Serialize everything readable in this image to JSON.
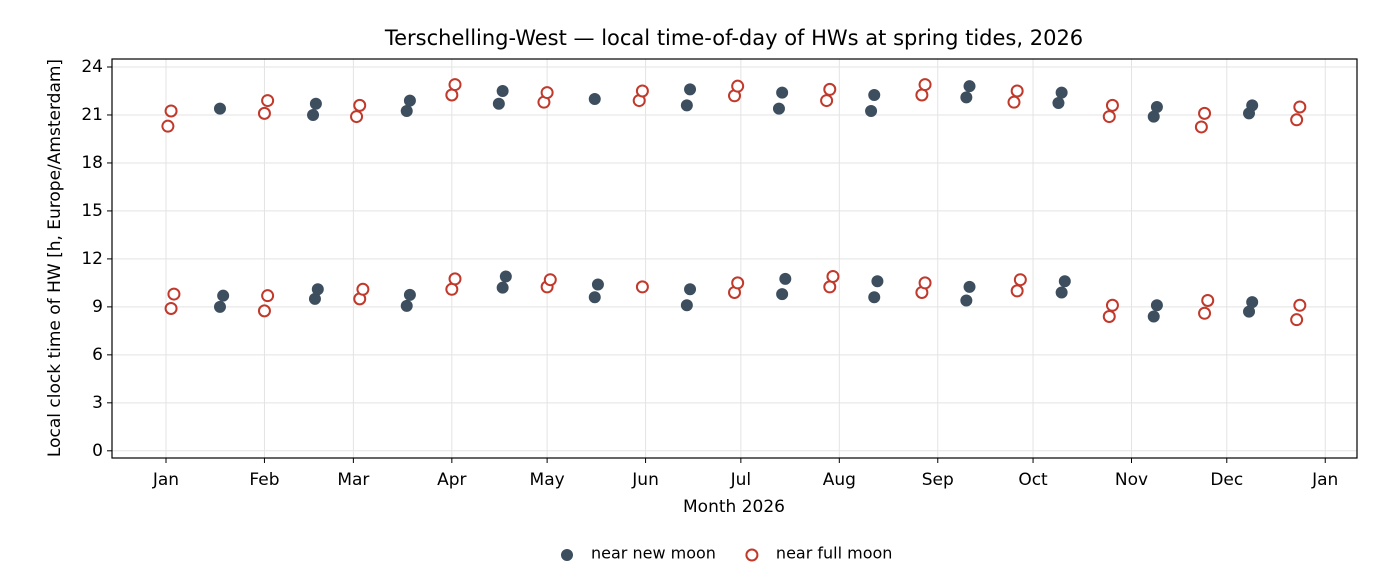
{
  "chart_data": {
    "type": "scatter",
    "title": "Terschelling-West — local time-of-day of HWs at spring tides, 2026",
    "xlabel": "Month 2026",
    "ylabel": "Local clock time of HW [h, Europe/Amsterdam]",
    "xlim": [
      -17,
      375
    ],
    "ylim": [
      -0.45,
      24.5
    ],
    "xticks": [
      {
        "value": 0,
        "label": "Jan"
      },
      {
        "value": 31,
        "label": "Feb"
      },
      {
        "value": 59,
        "label": "Mar"
      },
      {
        "value": 90,
        "label": "Apr"
      },
      {
        "value": 120,
        "label": "May"
      },
      {
        "value": 151,
        "label": "Jun"
      },
      {
        "value": 181,
        "label": "Jul"
      },
      {
        "value": 212,
        "label": "Aug"
      },
      {
        "value": 243,
        "label": "Sep"
      },
      {
        "value": 273,
        "label": "Oct"
      },
      {
        "value": 304,
        "label": "Nov"
      },
      {
        "value": 334,
        "label": "Dec"
      },
      {
        "value": 365,
        "label": "Jan"
      }
    ],
    "yticks": [
      0,
      3,
      6,
      9,
      12,
      15,
      18,
      21,
      24
    ],
    "grid": true,
    "legend": "bottom",
    "series": [
      {
        "name": "near new moon",
        "color": "#3d4e5f",
        "marker": "filled",
        "x": [
          17,
          17,
          18,
          46.3,
          47.2,
          46.9,
          47.8,
          75.8,
          76.8,
          75.8,
          76.8,
          104.8,
          106,
          106,
          107,
          135,
          135,
          136,
          164,
          165,
          164,
          165,
          193,
          194,
          194,
          195,
          222,
          223,
          223,
          224,
          252,
          253,
          252,
          253,
          281,
          282,
          282,
          283,
          311,
          312,
          311,
          312,
          341,
          342,
          341,
          342
        ],
        "values": [
          21.4,
          9.0,
          9.7,
          21.0,
          21.7,
          9.5,
          10.1,
          21.25,
          21.9,
          9.06,
          9.75,
          21.7,
          22.5,
          10.2,
          10.9,
          22.0,
          9.6,
          10.4,
          21.6,
          22.6,
          9.1,
          10.1,
          21.4,
          22.4,
          9.8,
          10.75,
          21.25,
          22.25,
          9.6,
          10.6,
          22.1,
          22.8,
          9.4,
          10.25,
          21.75,
          22.4,
          9.9,
          10.6,
          20.9,
          21.5,
          8.4,
          9.1,
          21.1,
          21.6,
          8.7,
          9.3
        ]
      },
      {
        "name": "near full moon",
        "color": "#c0392b",
        "marker": "hollow",
        "x": [
          0.6,
          1.6,
          1.6,
          2.5,
          31,
          32,
          31,
          32,
          60,
          61,
          61,
          62,
          90,
          91,
          90,
          91,
          119,
          120,
          120,
          121,
          149,
          150,
          150,
          179,
          180,
          179,
          180,
          208,
          209,
          209,
          210,
          238,
          239,
          238,
          239,
          267,
          268,
          268,
          269,
          297,
          298,
          297,
          298,
          326,
          327,
          327,
          328,
          356,
          357,
          356,
          357
        ],
        "values": [
          20.3,
          21.25,
          8.9,
          9.8,
          21.1,
          21.9,
          8.75,
          9.7,
          20.9,
          21.6,
          9.5,
          10.1,
          22.25,
          22.9,
          10.1,
          10.75,
          21.8,
          22.4,
          10.25,
          10.7,
          21.9,
          22.5,
          10.25,
          22.2,
          22.8,
          9.9,
          10.5,
          21.9,
          22.6,
          10.25,
          10.9,
          22.25,
          22.9,
          9.9,
          10.5,
          21.8,
          22.5,
          10.0,
          10.7,
          20.9,
          21.6,
          8.4,
          9.1,
          20.25,
          21.1,
          8.6,
          9.4,
          20.7,
          21.5,
          8.2,
          9.1
        ]
      }
    ]
  }
}
